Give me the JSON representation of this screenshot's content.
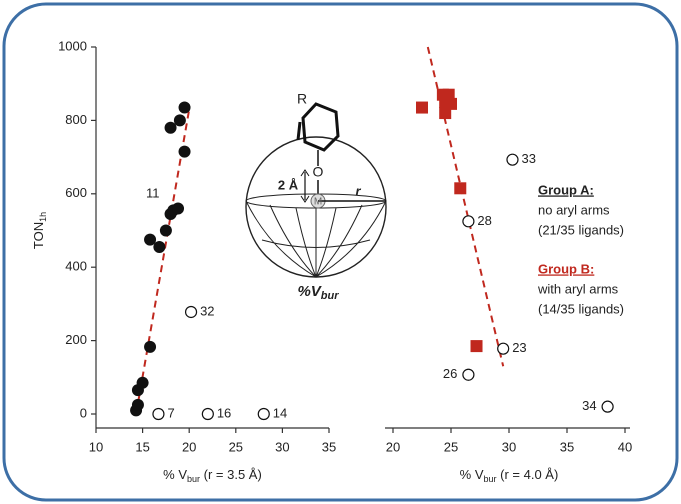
{
  "chart_data": [
    {
      "type": "scatter",
      "y_label": {
        "main": "TON",
        "sub": "1h"
      },
      "x_label": {
        "main": "% V",
        "sub": "bur",
        "rest": " (r = 3.5 Å)"
      },
      "xlim": [
        10,
        35
      ],
      "xticks": [
        10,
        15,
        20,
        25,
        30,
        35
      ],
      "ylim": [
        0,
        1000
      ],
      "yticks": [
        0,
        200,
        400,
        600,
        800,
        1000
      ],
      "trend": {
        "color": "#c0281e",
        "x": [
          14.3,
          20
        ],
        "values": [
          0,
          830
        ]
      },
      "series": [
        {
          "color": "#111111",
          "marker": "filled-circle",
          "x": [
            14.3,
            14.5,
            14.5,
            15,
            15.8,
            15.8,
            16.8,
            17.5,
            18,
            18.3,
            18.8,
            18,
            19,
            19.5,
            19.5
          ],
          "values": [
            10,
            65,
            25,
            85,
            183,
            475,
            455,
            500,
            545,
            555,
            560,
            780,
            800,
            835,
            715
          ],
          "labels": [
            null,
            null,
            null,
            null,
            null,
            null,
            null,
            null,
            "11",
            null,
            null,
            null,
            null,
            null,
            null
          ]
        },
        {
          "color": "#111111",
          "marker": "open-circle",
          "x": [
            20.2,
            16.7,
            22,
            28
          ],
          "values": [
            278,
            0,
            0,
            0
          ],
          "labels": [
            "32",
            "7",
            "16",
            "14"
          ]
        }
      ]
    },
    {
      "type": "scatter",
      "x_label": {
        "main": "% V",
        "sub": "bur",
        "rest": " (r = 4.0 Å)"
      },
      "xlim": [
        20,
        40
      ],
      "xticks": [
        20,
        25,
        30,
        35,
        40
      ],
      "ylim": [
        0,
        1000
      ],
      "trend": {
        "color": "#c0281e",
        "x": [
          23,
          29.5
        ],
        "values": [
          1000,
          130
        ]
      },
      "series": [
        {
          "color": "#c0281e",
          "marker": "square",
          "x": [
            22.5,
            24.3,
            24.5,
            24.8,
            25,
            24.5,
            25.8,
            27.2
          ],
          "values": [
            835,
            870,
            850,
            870,
            845,
            820,
            615,
            185
          ],
          "labels": [
            null,
            null,
            null,
            null,
            null,
            null,
            null,
            null
          ]
        },
        {
          "color": "#111111",
          "marker": "open-circle",
          "x": [
            30.3,
            26.5,
            29.5,
            26.5,
            38.5
          ],
          "values": [
            693,
            525,
            178,
            107,
            20
          ],
          "labels": [
            "33",
            "28",
            "23",
            "26",
            "34"
          ]
        }
      ],
      "annotations": {
        "group_a": {
          "title": "Group A:",
          "lines": [
            "no aryl arms",
            "(21/35 ligands)"
          ]
        },
        "group_b": {
          "title": "Group B:",
          "lines": [
            "with aryl arms",
            "(14/35 ligands)"
          ]
        }
      }
    }
  ],
  "diagram": {
    "r_group": "R",
    "oxygen": "O",
    "metal": "M",
    "distance": "2 Å",
    "radius": "r",
    "caption": {
      "main": "%V",
      "sub": "bur"
    }
  }
}
